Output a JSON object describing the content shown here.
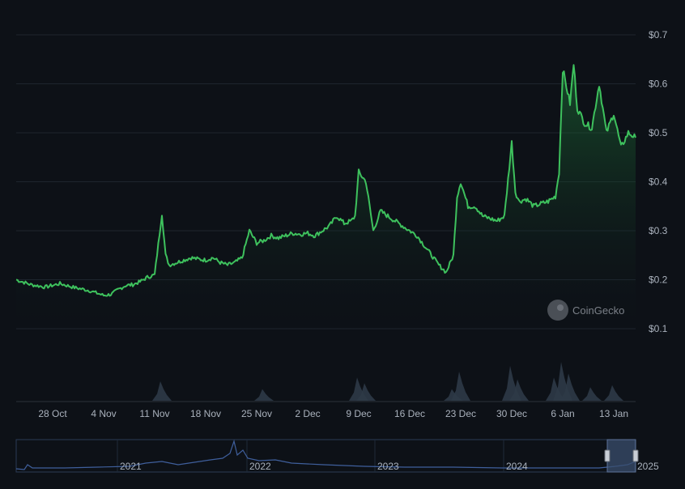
{
  "chart_data": {
    "type": "area",
    "title": "",
    "xlabel": "",
    "ylabel": "",
    "ylim": [
      0.1,
      0.7
    ],
    "y_ticks": [
      0.1,
      0.2,
      0.3,
      0.4,
      0.5,
      0.6,
      0.7
    ],
    "y_tick_labels": [
      "$0.1",
      "$0.2",
      "$0.3",
      "$0.4",
      "$0.5",
      "$0.6",
      "$0.7"
    ],
    "x_tick_labels": [
      "28 Oct",
      "4 Nov",
      "11 Nov",
      "18 Nov",
      "25 Nov",
      "2 Dec",
      "9 Dec",
      "16 Dec",
      "23 Dec",
      "30 Dec",
      "6 Jan",
      "13 Jan"
    ],
    "x_tick_dates": [
      "2024-10-28",
      "2024-11-04",
      "2024-11-11",
      "2024-11-18",
      "2024-11-25",
      "2024-12-02",
      "2024-12-09",
      "2024-12-16",
      "2024-12-23",
      "2024-12-30",
      "2025-01-06",
      "2025-01-13"
    ],
    "xlim": [
      "2024-10-23",
      "2025-01-16"
    ],
    "grid": true,
    "line_color": "#3ec15d",
    "series": [
      {
        "values_per": "point",
        "x": [
          "2024-10-23",
          "2024-10-25",
          "2024-10-27",
          "2024-10-29",
          "2024-10-31",
          "2024-11-02",
          "2024-11-04",
          "2024-11-05",
          "2024-11-06",
          "2024-11-07",
          "2024-11-08",
          "2024-11-09",
          "2024-11-10",
          "2024-11-11",
          "2024-11-12",
          "2024-11-12T12:00",
          "2024-11-13",
          "2024-11-14",
          "2024-11-15",
          "2024-11-16",
          "2024-11-17",
          "2024-11-18",
          "2024-11-19",
          "2024-11-20",
          "2024-11-21",
          "2024-11-22",
          "2024-11-23",
          "2024-11-24",
          "2024-11-25",
          "2024-11-26",
          "2024-11-27",
          "2024-11-28",
          "2024-11-29",
          "2024-11-30",
          "2024-12-01",
          "2024-12-02",
          "2024-12-03",
          "2024-12-04",
          "2024-12-05",
          "2024-12-06",
          "2024-12-07",
          "2024-12-08",
          "2024-12-08T12:00",
          "2024-12-09",
          "2024-12-10",
          "2024-12-11",
          "2024-12-12",
          "2024-12-13",
          "2024-12-14",
          "2024-12-15",
          "2024-12-16",
          "2024-12-17",
          "2024-12-18",
          "2024-12-19",
          "2024-12-20",
          "2024-12-21",
          "2024-12-22",
          "2024-12-22T12:00",
          "2024-12-23",
          "2024-12-24",
          "2024-12-25",
          "2024-12-26",
          "2024-12-27",
          "2024-12-28",
          "2024-12-29",
          "2024-12-30",
          "2024-12-30T12:00",
          "2024-12-31",
          "2025-01-01",
          "2025-01-02",
          "2025-01-03",
          "2025-01-04",
          "2025-01-05",
          "2025-01-05T12:00",
          "2025-01-06",
          "2025-01-07",
          "2025-01-07T12:00",
          "2025-01-08",
          "2025-01-09",
          "2025-01-10",
          "2025-01-11",
          "2025-01-12",
          "2025-01-13",
          "2025-01-14",
          "2025-01-15",
          "2025-01-16"
        ],
        "y": [
          0.2,
          0.19,
          0.185,
          0.192,
          0.184,
          0.178,
          0.168,
          0.17,
          0.18,
          0.188,
          0.19,
          0.196,
          0.205,
          0.21,
          0.335,
          0.25,
          0.23,
          0.235,
          0.24,
          0.245,
          0.242,
          0.24,
          0.245,
          0.235,
          0.23,
          0.235,
          0.245,
          0.3,
          0.275,
          0.28,
          0.29,
          0.285,
          0.29,
          0.295,
          0.293,
          0.295,
          0.29,
          0.3,
          0.31,
          0.33,
          0.315,
          0.32,
          0.33,
          0.42,
          0.4,
          0.3,
          0.34,
          0.33,
          0.32,
          0.31,
          0.3,
          0.29,
          0.27,
          0.25,
          0.23,
          0.215,
          0.25,
          0.37,
          0.4,
          0.35,
          0.35,
          0.33,
          0.325,
          0.32,
          0.33,
          0.48,
          0.38,
          0.36,
          0.365,
          0.35,
          0.355,
          0.36,
          0.37,
          0.42,
          0.63,
          0.56,
          0.64,
          0.55,
          0.52,
          0.51,
          0.6,
          0.5,
          0.54,
          0.47,
          0.5,
          0.49
        ]
      }
    ],
    "volume": {
      "x": [
        "2024-11-12",
        "2024-11-26",
        "2024-12-09",
        "2024-12-10",
        "2024-12-22",
        "2024-12-23",
        "2024-12-30",
        "2024-12-31",
        "2025-01-05",
        "2025-01-06",
        "2025-01-07",
        "2025-01-10",
        "2025-01-13"
      ],
      "v": [
        0.5,
        0.3,
        0.6,
        0.45,
        0.3,
        0.75,
        0.9,
        0.55,
        0.6,
        1.0,
        0.7,
        0.35,
        0.4
      ]
    },
    "navigator": {
      "labels": [
        "2021",
        "2022",
        "2023",
        "2024",
        "2025"
      ]
    }
  },
  "watermark": {
    "text": "CoinGecko"
  }
}
